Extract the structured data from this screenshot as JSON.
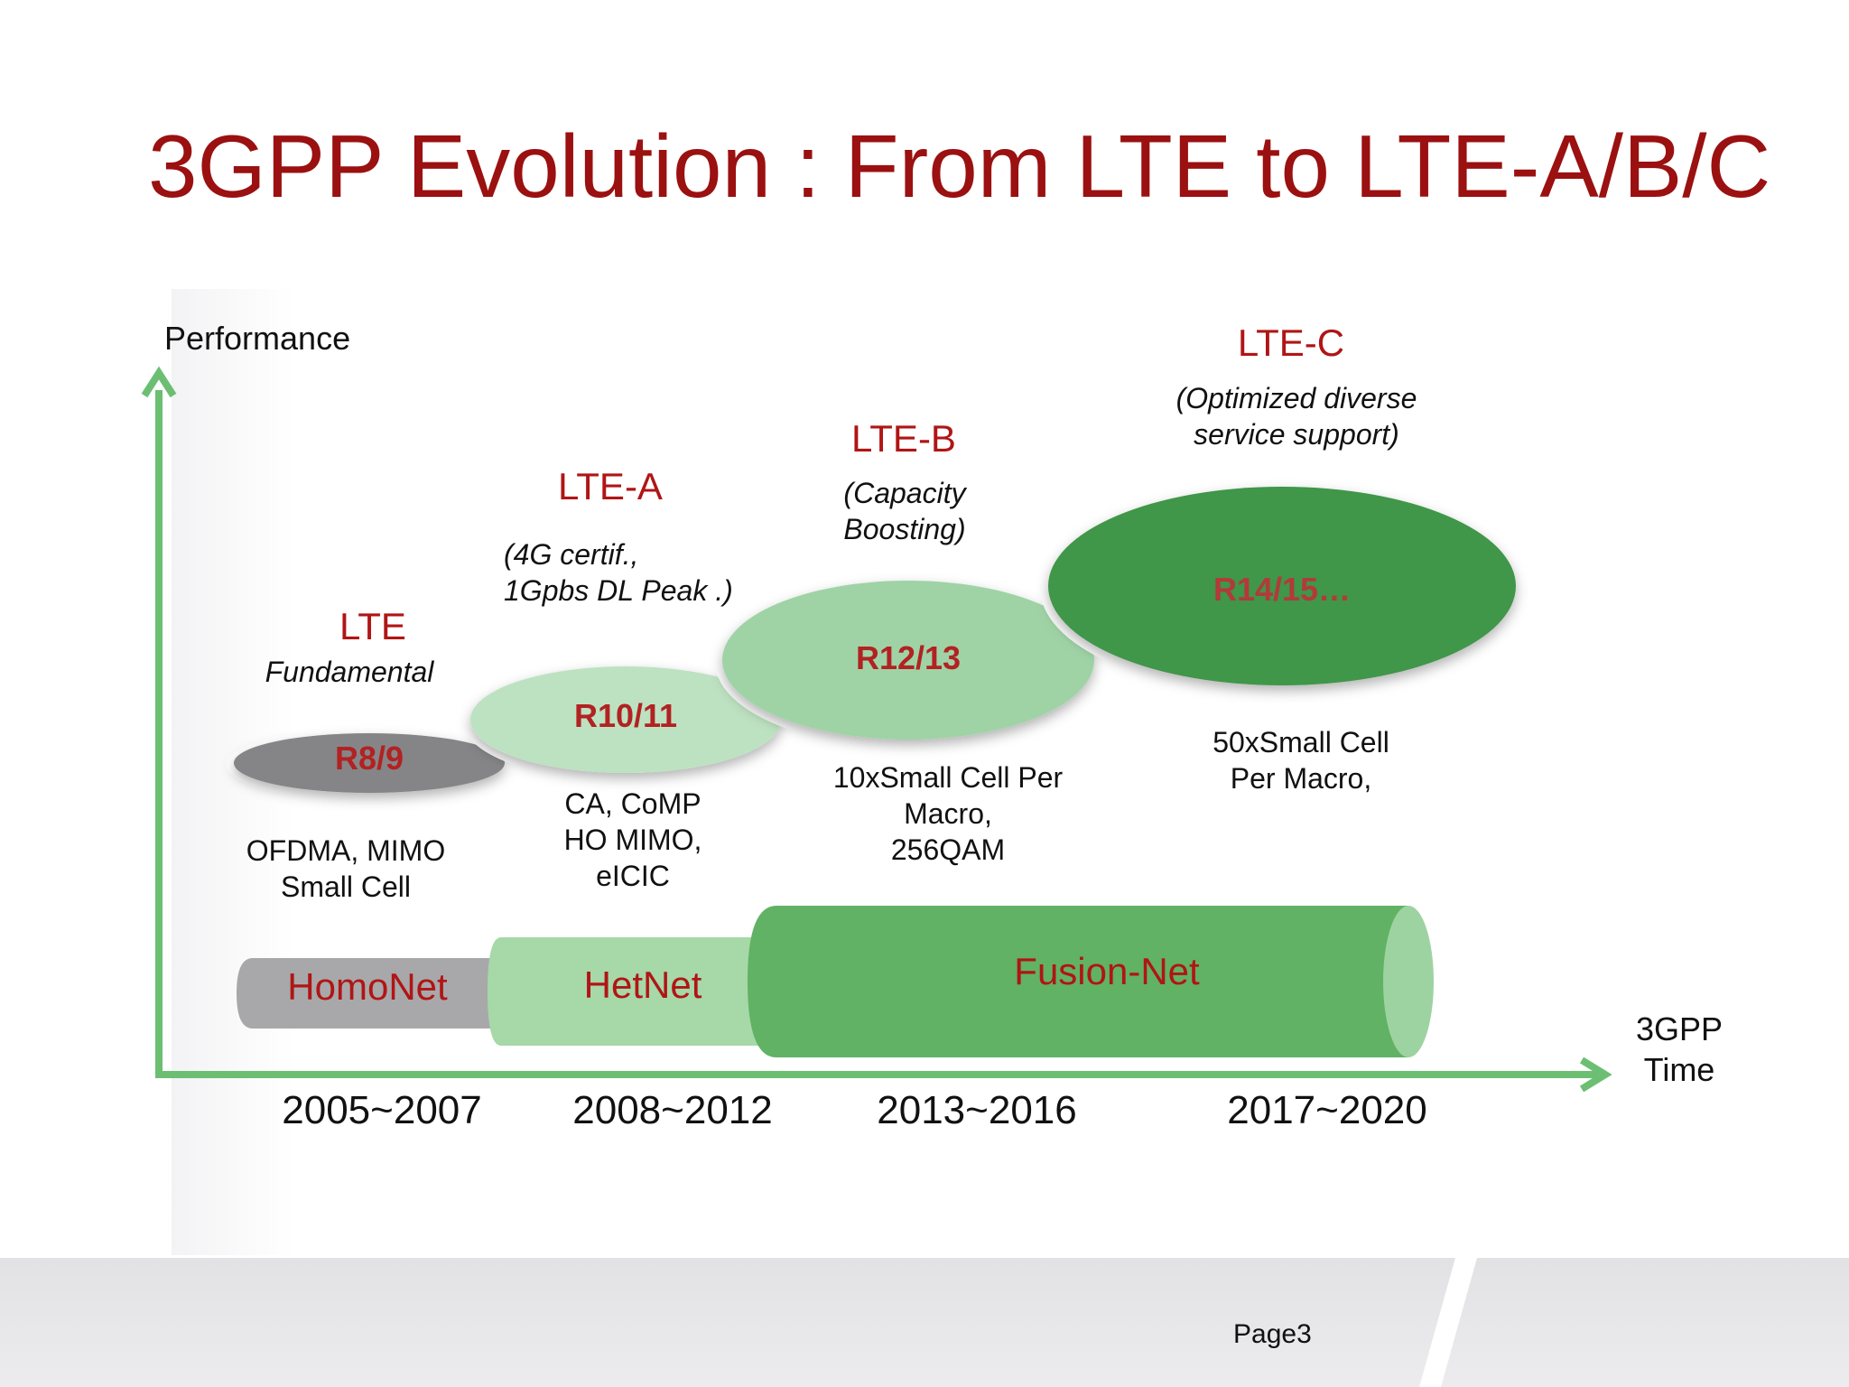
{
  "title": "3GPP Evolution : From LTE to LTE-A/B/C",
  "axis": {
    "y_label": "Performance",
    "x_label": [
      "3GPP",
      "Time"
    ]
  },
  "eras": [
    {
      "name": "LTE",
      "note": [
        "Fundamental"
      ],
      "release": "R8/9",
      "features": [
        "OFDMA, MIMO",
        "Small Cell"
      ],
      "color": "#8a8a8a"
    },
    {
      "name": "LTE-A",
      "note": [
        "(4G certif.,",
        "1Gpbs DL Peak .)"
      ],
      "release": "R10/11",
      "features": [
        "CA, CoMP",
        "HO MIMO,",
        "eICIC"
      ],
      "color": "#b9e0bd"
    },
    {
      "name": "LTE-B",
      "note": [
        "(Capacity",
        "Boosting)"
      ],
      "release": "R12/13",
      "features": [
        "10xSmall Cell Per",
        "Macro,",
        "256QAM"
      ],
      "color": "#9fd3a6"
    },
    {
      "name": "LTE-C",
      "note": [
        "(Optimized diverse",
        "service support)"
      ],
      "release": "R14/15…",
      "features": [
        "50xSmall Cell",
        "Per Macro,"
      ],
      "color": "#3f9648"
    }
  ],
  "networks": [
    {
      "label": "HomoNet",
      "color": "#a8a8aa"
    },
    {
      "label": "HetNet",
      "color": "#a6d8a8"
    },
    {
      "label": "Fusion-Net",
      "color": "#61b264"
    }
  ],
  "periods": [
    "2005~2007",
    "2008~2012",
    "2013~2016",
    "2017~2020"
  ],
  "footer": {
    "page": "Page3"
  },
  "colors": {
    "title": "#9b1010",
    "label_red": "#b01515",
    "axis": "#6cbf72"
  }
}
